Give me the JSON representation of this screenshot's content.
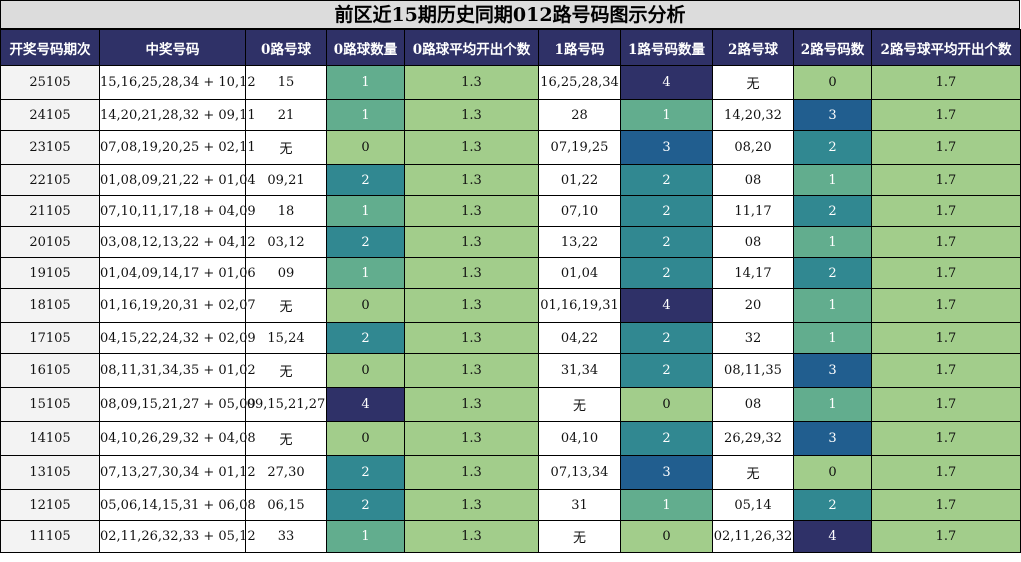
{
  "title": "前区近15期历史同期012路号码图示分析",
  "colors": {
    "header_bg": "#2f3167",
    "header_text": "#ffffff",
    "title_bg": "#dcdcdc",
    "avg_bg": "#a2cd8b",
    "count_0": "#a2cd8b",
    "count_1": "#62ad8e",
    "count_2": "#318891",
    "count_3": "#215e8f",
    "count_4": "#2f3168"
  },
  "headers": [
    "开奖号码期次",
    "中奖号码",
    "0路号球",
    "0路球数量",
    "0路球平均开出个数",
    "1路号码",
    "1路号码数量",
    "2路号球",
    "2路号码数",
    "2路号球平均开出个数"
  ],
  "rows": [
    {
      "period": "25105",
      "numbers": "15,16,25,28,34 + 10,12",
      "r0_balls": "15",
      "r0_count": "1",
      "r0_avg": "1.3",
      "r1_balls": "16,25,28,34",
      "r1_count": "4",
      "r2_balls": "无",
      "r2_count": "0",
      "r2_avg": "1.7"
    },
    {
      "period": "24105",
      "numbers": "14,20,21,28,32 + 09,11",
      "r0_balls": "21",
      "r0_count": "1",
      "r0_avg": "1.3",
      "r1_balls": "28",
      "r1_count": "1",
      "r2_balls": "14,20,32",
      "r2_count": "3",
      "r2_avg": "1.7"
    },
    {
      "period": "23105",
      "numbers": "07,08,19,20,25 + 02,11",
      "r0_balls": "无",
      "r0_count": "0",
      "r0_avg": "1.3",
      "r1_balls": "07,19,25",
      "r1_count": "3",
      "r2_balls": "08,20",
      "r2_count": "2",
      "r2_avg": "1.7"
    },
    {
      "period": "22105",
      "numbers": "01,08,09,21,22 + 01,04",
      "r0_balls": "09,21",
      "r0_count": "2",
      "r0_avg": "1.3",
      "r1_balls": "01,22",
      "r1_count": "2",
      "r2_balls": "08",
      "r2_count": "1",
      "r2_avg": "1.7"
    },
    {
      "period": "21105",
      "numbers": "07,10,11,17,18 + 04,09",
      "r0_balls": "18",
      "r0_count": "1",
      "r0_avg": "1.3",
      "r1_balls": "07,10",
      "r1_count": "2",
      "r2_balls": "11,17",
      "r2_count": "2",
      "r2_avg": "1.7"
    },
    {
      "period": "20105",
      "numbers": "03,08,12,13,22 + 04,12",
      "r0_balls": "03,12",
      "r0_count": "2",
      "r0_avg": "1.3",
      "r1_balls": "13,22",
      "r1_count": "2",
      "r2_balls": "08",
      "r2_count": "1",
      "r2_avg": "1.7"
    },
    {
      "period": "19105",
      "numbers": "01,04,09,14,17 + 01,06",
      "r0_balls": "09",
      "r0_count": "1",
      "r0_avg": "1.3",
      "r1_balls": "01,04",
      "r1_count": "2",
      "r2_balls": "14,17",
      "r2_count": "2",
      "r2_avg": "1.7"
    },
    {
      "period": "18105",
      "numbers": "01,16,19,20,31 + 02,07",
      "r0_balls": "无",
      "r0_count": "0",
      "r0_avg": "1.3",
      "r1_balls": "01,16,19,31",
      "r1_count": "4",
      "r2_balls": "20",
      "r2_count": "1",
      "r2_avg": "1.7"
    },
    {
      "period": "17105",
      "numbers": "04,15,22,24,32 + 02,09",
      "r0_balls": "15,24",
      "r0_count": "2",
      "r0_avg": "1.3",
      "r1_balls": "04,22",
      "r1_count": "2",
      "r2_balls": "32",
      "r2_count": "1",
      "r2_avg": "1.7"
    },
    {
      "period": "16105",
      "numbers": "08,11,31,34,35 + 01,02",
      "r0_balls": "无",
      "r0_count": "0",
      "r0_avg": "1.3",
      "r1_balls": "31,34",
      "r1_count": "2",
      "r2_balls": "08,11,35",
      "r2_count": "3",
      "r2_avg": "1.7"
    },
    {
      "period": "15105",
      "numbers": "08,09,15,21,27 + 05,09",
      "r0_balls": "09,15,21,27",
      "r0_count": "4",
      "r0_avg": "1.3",
      "r1_balls": "无",
      "r1_count": "0",
      "r2_balls": "08",
      "r2_count": "1",
      "r2_avg": "1.7"
    },
    {
      "period": "14105",
      "numbers": "04,10,26,29,32 + 04,08",
      "r0_balls": "无",
      "r0_count": "0",
      "r0_avg": "1.3",
      "r1_balls": "04,10",
      "r1_count": "2",
      "r2_balls": "26,29,32",
      "r2_count": "3",
      "r2_avg": "1.7"
    },
    {
      "period": "13105",
      "numbers": "07,13,27,30,34 + 01,12",
      "r0_balls": "27,30",
      "r0_count": "2",
      "r0_avg": "1.3",
      "r1_balls": "07,13,34",
      "r1_count": "3",
      "r2_balls": "无",
      "r2_count": "0",
      "r2_avg": "1.7"
    },
    {
      "period": "12105",
      "numbers": "05,06,14,15,31 + 06,08",
      "r0_balls": "06,15",
      "r0_count": "2",
      "r0_avg": "1.3",
      "r1_balls": "31",
      "r1_count": "1",
      "r2_balls": "05,14",
      "r2_count": "2",
      "r2_avg": "1.7"
    },
    {
      "period": "11105",
      "numbers": "02,11,26,32,33 + 05,12",
      "r0_balls": "33",
      "r0_count": "1",
      "r0_avg": "1.3",
      "r1_balls": "无",
      "r1_count": "0",
      "r2_balls": "02,11,26,32",
      "r2_count": "4",
      "r2_avg": "1.7"
    }
  ]
}
